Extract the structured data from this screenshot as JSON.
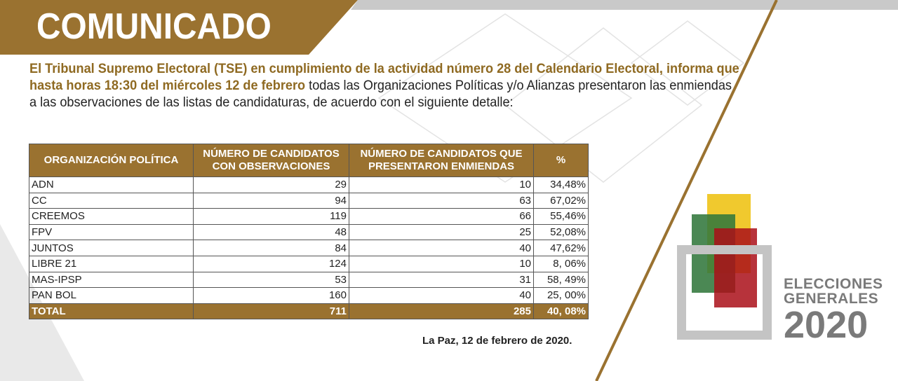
{
  "header": {
    "title": "COMUNICADO"
  },
  "intro": {
    "bold": "El Tribunal Supremo Electoral (TSE) en cumplimiento de la actividad número 28 del Calendario Electoral, informa que hasta horas 18:30 del miércoles 12 de febrero",
    "regular": " todas las Organizaciones Políticas y/o Alianzas presentaron  las enmiendas a las observaciones de las listas de candidaturas, de acuerdo con el siguiente detalle:"
  },
  "table": {
    "headers": [
      "ORGANIZACIÓN POLÍTICA",
      "NÚMERO DE CANDIDATOS CON OBSERVACIONES",
      "NÚMERO DE CANDIDATOS QUE PRESENTARON ENMIENDAS",
      "%"
    ],
    "rows": [
      [
        "ADN",
        "29",
        "10",
        "34,48%"
      ],
      [
        "CC",
        "94",
        "63",
        "67,02%"
      ],
      [
        "CREEMOS",
        "119",
        "66",
        "55,46%"
      ],
      [
        "FPV",
        "48",
        "25",
        "52,08%"
      ],
      [
        "JUNTOS",
        "84",
        "40",
        "47,62%"
      ],
      [
        "LIBRE 21",
        "124",
        "10",
        "8, 06%"
      ],
      [
        "MAS-IPSP",
        "53",
        "31",
        "58, 49%"
      ],
      [
        "PAN BOL",
        "160",
        "40",
        "25, 00%"
      ]
    ],
    "total": [
      "TOTAL",
      "711",
      "285",
      "40, 08%"
    ]
  },
  "footer": {
    "date": "La Paz, 12 de febrero de 2020."
  },
  "logo": {
    "line1": "ELECCIONES",
    "line2": "GENERALES",
    "year": "2020"
  },
  "colors": {
    "gold": "#9a7230",
    "yellow": "#f0c92e",
    "green": "#3f7f45",
    "red": "#b0141c",
    "gray": "#c4c4c4"
  }
}
